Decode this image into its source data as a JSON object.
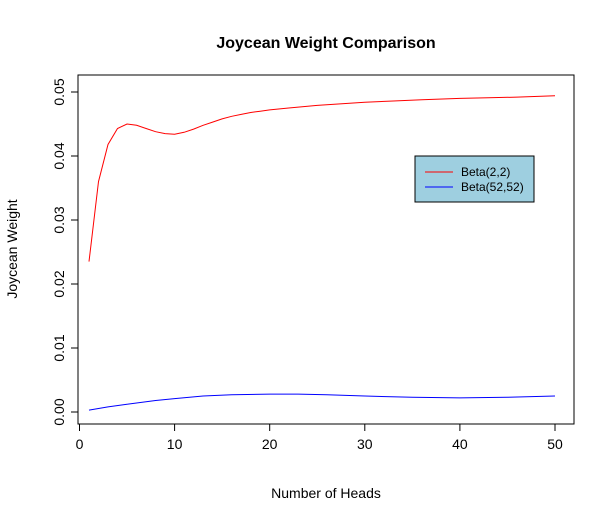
{
  "chart_data": {
    "type": "line",
    "title": "Joycean Weight Comparison",
    "xlabel": "Number of Heads",
    "ylabel": "Joycean Weight",
    "xlim": [
      1,
      50
    ],
    "ylim": [
      0,
      0.05
    ],
    "xticks": [
      0,
      10,
      20,
      30,
      40,
      50
    ],
    "xtick_labels": [
      "0",
      "10",
      "20",
      "30",
      "40",
      "50"
    ],
    "yticks": [
      0,
      0.01,
      0.02,
      0.03,
      0.04,
      0.05
    ],
    "ytick_labels": [
      "0.00",
      "0.01",
      "0.02",
      "0.03",
      "0.04",
      "0.05"
    ],
    "grid": false,
    "legend": {
      "placement": "right",
      "background": "#9ecfe0"
    },
    "series": [
      {
        "name": "Beta(2,2)",
        "color": "#ff0000",
        "x": [
          1,
          2,
          3,
          4,
          5,
          6,
          7,
          8,
          9,
          10,
          11,
          12,
          13,
          14,
          15,
          16,
          17,
          18,
          19,
          20,
          22,
          25,
          28,
          30,
          33,
          36,
          40,
          43,
          46,
          50
        ],
        "y": [
          0.0235,
          0.036,
          0.0418,
          0.0443,
          0.045,
          0.0448,
          0.0443,
          0.0438,
          0.0435,
          0.0434,
          0.0437,
          0.0442,
          0.0448,
          0.0453,
          0.0458,
          0.0462,
          0.0465,
          0.0468,
          0.047,
          0.0472,
          0.0475,
          0.0479,
          0.0482,
          0.0484,
          0.0486,
          0.0488,
          0.049,
          0.0491,
          0.0492,
          0.0494
        ]
      },
      {
        "name": "Beta(52,52)",
        "color": "#0000ff",
        "x": [
          1,
          3,
          5,
          8,
          10,
          13,
          16,
          20,
          23,
          26,
          30,
          35,
          40,
          45,
          50
        ],
        "y": [
          0.0003,
          0.0008,
          0.0012,
          0.0018,
          0.0021,
          0.0025,
          0.0027,
          0.0028,
          0.0028,
          0.0027,
          0.0025,
          0.0023,
          0.0022,
          0.0023,
          0.0025
        ]
      }
    ]
  }
}
